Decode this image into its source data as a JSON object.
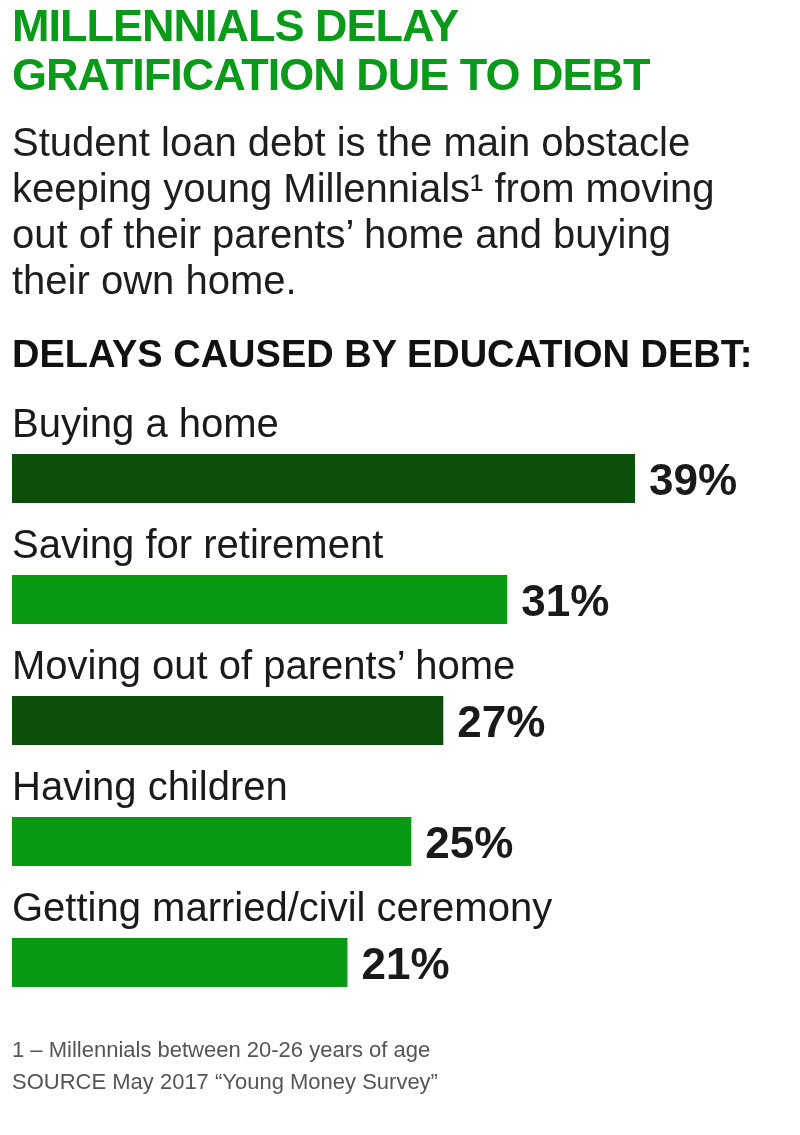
{
  "chart_data": {
    "type": "bar",
    "orientation": "horizontal",
    "title": "MILLENNIALS DELAY GRATIFICATION DUE TO DEBT",
    "subtitle": "Student loan debt is the main obstacle keeping young Millennials¹ from moving out of their parents’ home and buying their own home.",
    "annotations": [
      "DELAYS CAUSED BY EDUCATION DEBT:",
      "1 – Millennials between 20-26 years of age",
      "SOURCE May 2017 “Young Money Survey”"
    ],
    "categories": [
      "Buying a home",
      "Saving for retirement",
      "Moving out of parents’ home",
      "Having children",
      "Getting married/civil ceremony"
    ],
    "values": [
      39,
      31,
      27,
      25,
      21
    ],
    "colors": [
      "#0b4f0b",
      "#079a12",
      "#0b4f0b",
      "#079a12",
      "#079a12"
    ],
    "value_labels": [
      "39%",
      "31%",
      "27%",
      "25%",
      "21%"
    ]
  }
}
